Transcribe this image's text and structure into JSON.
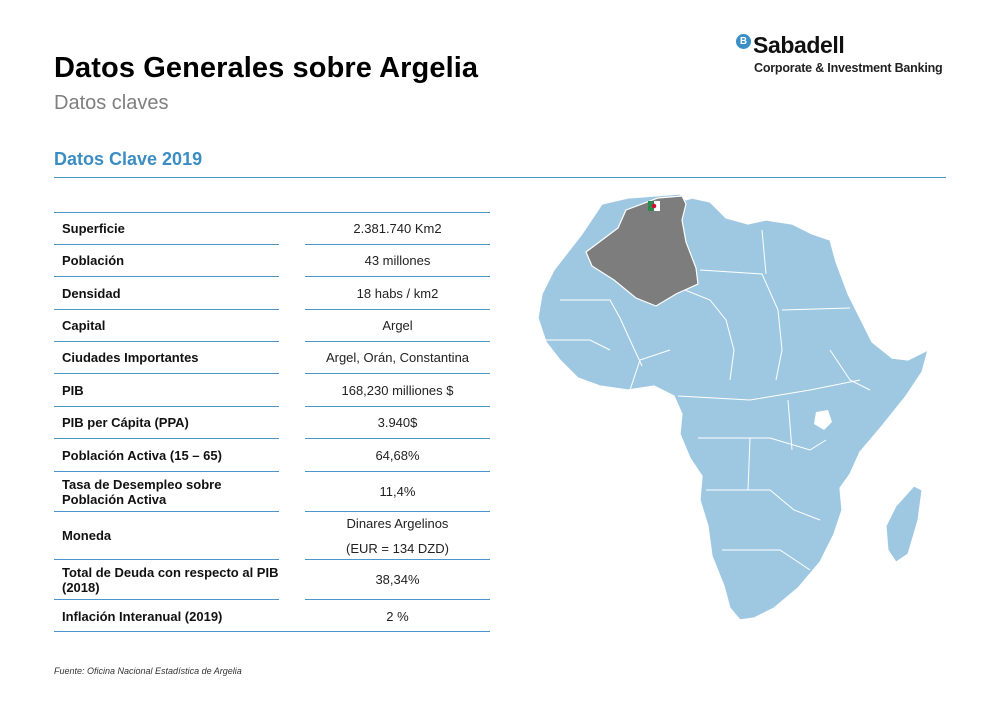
{
  "header": {
    "title": "Datos Generales sobre Argelia",
    "subtitle": "Datos claves"
  },
  "logo": {
    "badge": "B",
    "name": "Sabadell",
    "subtitle": "Corporate & Investment Banking",
    "accent": "#3a8fc7"
  },
  "section": {
    "heading": "Datos Clave 2019",
    "color": "#3b8dc2"
  },
  "table": {
    "rows": [
      {
        "label": "Superficie",
        "value": "2.381.740 Km2"
      },
      {
        "label": "Población",
        "value": "43 millones"
      },
      {
        "label": "Densidad",
        "value": "18 habs / km2"
      },
      {
        "label": "Capital",
        "value": "Argel"
      },
      {
        "label": "Ciudades Importantes",
        "value": "Argel, Orán, Constantina"
      },
      {
        "label": "PIB",
        "value": "168,230 milliones $"
      },
      {
        "label": "PIB per Cápita (PPA)",
        "value": "3.940$"
      },
      {
        "label": "Población Activa (15 – 65)",
        "value": "64,68%"
      },
      {
        "label": "Tasa de Desempleo sobre Población Activa",
        "value": "11,4%"
      },
      {
        "label": "Moneda",
        "value": "Dinares Argelinos",
        "value2": "(EUR = 134 DZD)"
      },
      {
        "label": "Total de Deuda con respecto al PIB (2018)",
        "value": "38,34%"
      },
      {
        "label": "Inflación Interanual (2019)",
        "value": "2 %"
      }
    ]
  },
  "map": {
    "region": "Africa",
    "highlighted_country": "Algeria",
    "continent_color": "#9ec8e2",
    "highlight_color": "#7d7d7d"
  },
  "footnote": "Fuente: Oficina Nacional Estadística de Argelia"
}
